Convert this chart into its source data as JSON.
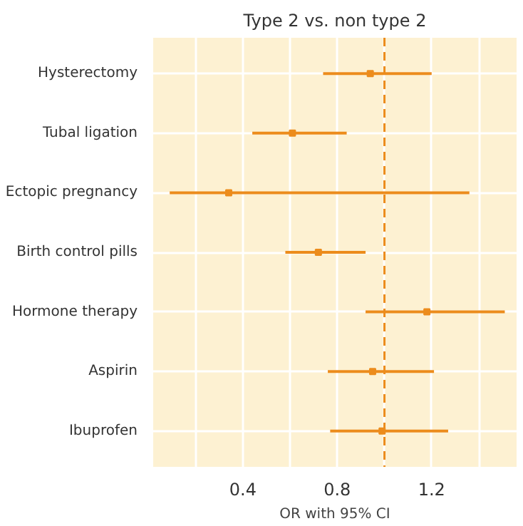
{
  "chart_data": {
    "type": "scatter",
    "orientation": "horizontal",
    "title": "Type 2 vs. non type 2",
    "xlabel": "OR with 95% CI",
    "categories": [
      "Hysterectomy",
      "Tubal ligation",
      "Ectopic pregnancy",
      "Birth control pills",
      "Hormone therapy",
      "Aspirin",
      "Ibuprofen"
    ],
    "series": [
      {
        "color": "#ec8c1c",
        "values": [
          0.94,
          0.61,
          0.34,
          0.72,
          1.18,
          0.95,
          0.99
        ],
        "errors": [
          [
            0.74,
            1.2
          ],
          [
            0.44,
            0.84
          ],
          [
            0.09,
            1.36
          ],
          [
            0.58,
            0.92
          ],
          [
            0.92,
            1.51
          ],
          [
            0.76,
            1.21
          ],
          [
            0.77,
            1.27
          ]
        ]
      }
    ],
    "xlim": [
      0.02,
      1.56
    ],
    "xticks": [
      {
        "value": 0.2,
        "label": null
      },
      0.4,
      {
        "value": 0.6,
        "label": null
      },
      0.8,
      {
        "value": 1.0,
        "label": null
      },
      1.2,
      {
        "value": 1.4,
        "label": null
      }
    ],
    "ref_lines": [
      {
        "axis": "x",
        "value": 1.0,
        "color": "#ec8c1c",
        "line_style": "dashed"
      }
    ],
    "grid": true,
    "marker": "square"
  }
}
